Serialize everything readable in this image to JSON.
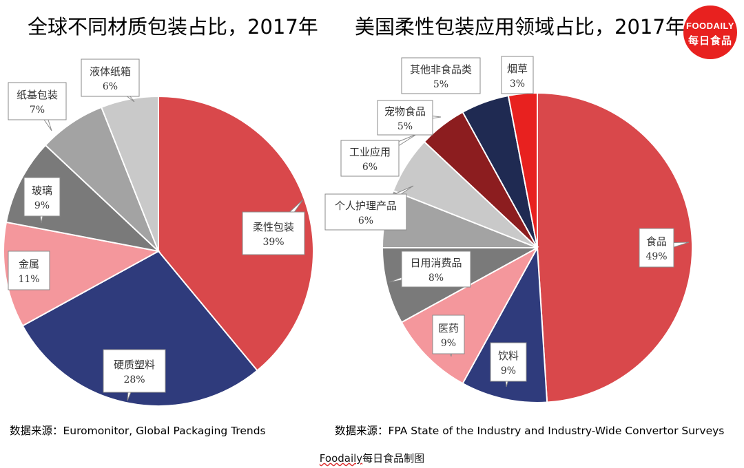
{
  "logo": {
    "line1": "FOODAILY",
    "line2": "每日食品"
  },
  "footer": {
    "brand": "Foodaily",
    "text": "每日食品制图"
  },
  "colors": {
    "red": "#d9484b",
    "navy": "#2f3b7c",
    "pink": "#f4979c",
    "dark_gray": "#7a7a7a",
    "mid_gray": "#a3a3a3",
    "light_gray": "#c9c9c9",
    "dark_red": "#8c1d1f",
    "dark_navy": "#1f2a52",
    "bright_red": "#e8211f"
  },
  "chart_data": [
    {
      "type": "pie",
      "title": "全球不同材质包装占比，2017年",
      "source": "数据来源：Euromonitor, Global Packaging Trends",
      "slices": [
        {
          "label": "柔性包装",
          "value": 39,
          "pct": "39%",
          "color": "#d9484b"
        },
        {
          "label": "硬质塑料",
          "value": 28,
          "pct": "28%",
          "color": "#2f3b7c"
        },
        {
          "label": "金属",
          "value": 11,
          "pct": "11%",
          "color": "#f4979c"
        },
        {
          "label": "玻璃",
          "value": 9,
          "pct": "9%",
          "color": "#7a7a7a"
        },
        {
          "label": "纸基包装",
          "value": 7,
          "pct": "7%",
          "color": "#a3a3a3"
        },
        {
          "label": "液体纸箱",
          "value": 6,
          "pct": "6%",
          "color": "#c9c9c9"
        }
      ]
    },
    {
      "type": "pie",
      "title": "美国柔性包装应用领域占比，2017年",
      "source": "数据来源：FPA State of the Industry and Industry-Wide Convertor Surveys",
      "slices": [
        {
          "label": "食品",
          "value": 49,
          "pct": "49%",
          "color": "#d9484b"
        },
        {
          "label": "饮料",
          "value": 9,
          "pct": "9%",
          "color": "#2f3b7c"
        },
        {
          "label": "医药",
          "value": 9,
          "pct": "9%",
          "color": "#f4979c"
        },
        {
          "label": "日用消费品",
          "value": 8,
          "pct": "8%",
          "color": "#7a7a7a"
        },
        {
          "label": "个人护理产品",
          "value": 6,
          "pct": "6%",
          "color": "#a3a3a3"
        },
        {
          "label": "工业应用",
          "value": 6,
          "pct": "6%",
          "color": "#c9c9c9"
        },
        {
          "label": "宠物食品",
          "value": 5,
          "pct": "5%",
          "color": "#8c1d1f"
        },
        {
          "label": "其他非食品类",
          "value": 5,
          "pct": "5%",
          "color": "#1f2a52"
        },
        {
          "label": "烟草",
          "value": 3,
          "pct": "3%",
          "color": "#e8211f"
        }
      ]
    }
  ]
}
